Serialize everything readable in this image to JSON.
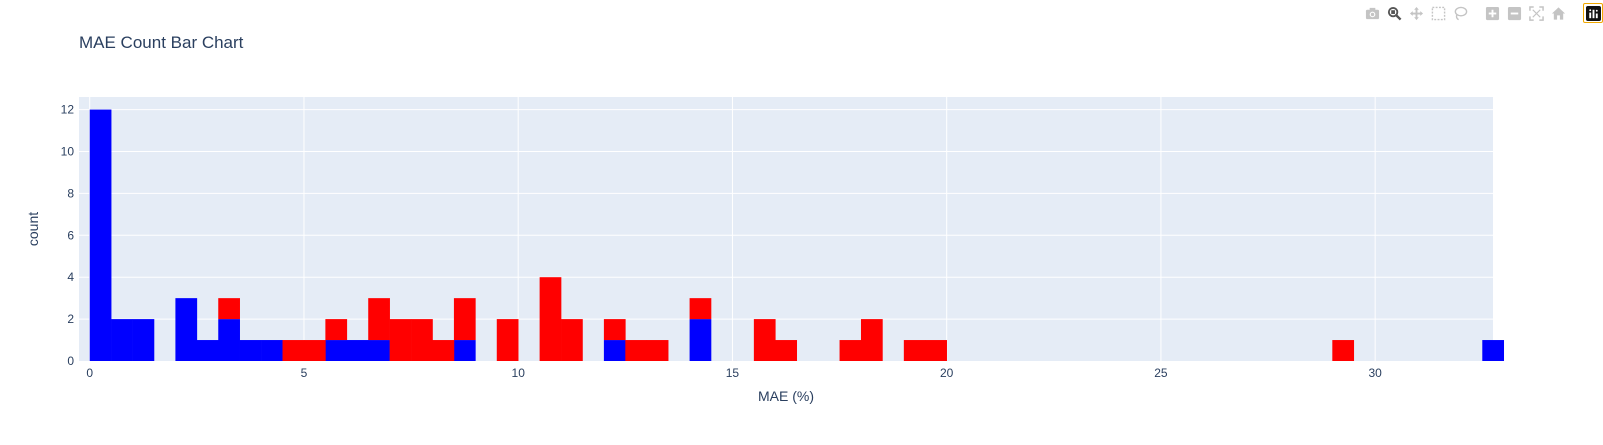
{
  "modebar": {
    "buttons": [
      {
        "icon": "camera-icon"
      },
      {
        "icon": "zoom-icon"
      },
      {
        "icon": "pan-icon"
      },
      {
        "icon": "box-select-icon"
      },
      {
        "icon": "lasso-select-icon"
      },
      {
        "icon": "zoom-in-icon"
      },
      {
        "icon": "zoom-out-icon"
      },
      {
        "icon": "autoscale-icon"
      },
      {
        "icon": "reset-axes-icon"
      },
      {
        "icon": "plotly-logo-icon"
      }
    ]
  },
  "colors": {
    "plot_bg": "#e5ecf6",
    "grid": "#ffffff",
    "series_a": "#0000ff",
    "series_b": "#ff0000"
  },
  "chart_data": {
    "type": "bar",
    "barmode": "stack",
    "title": "MAE Count Bar Chart",
    "xlabel": "MAE (%)",
    "ylabel": "count",
    "xlim": [
      -0.25,
      32.75
    ],
    "ylim": [
      0,
      12.6
    ],
    "bin_width": 0.5,
    "xticks": [
      0,
      5,
      10,
      15,
      20,
      25,
      30
    ],
    "yticks": [
      0,
      2,
      4,
      6,
      8,
      10,
      12
    ],
    "grid": true,
    "series": [
      {
        "color": "#0000ff",
        "bins": [
          {
            "x": 0,
            "count": 12
          },
          {
            "x": 0.5,
            "count": 2
          },
          {
            "x": 1,
            "count": 2
          },
          {
            "x": 2,
            "count": 3
          },
          {
            "x": 2.5,
            "count": 1
          },
          {
            "x": 3,
            "count": 2
          },
          {
            "x": 3.5,
            "count": 1
          },
          {
            "x": 4,
            "count": 1
          },
          {
            "x": 5.5,
            "count": 1
          },
          {
            "x": 6,
            "count": 1
          },
          {
            "x": 6.5,
            "count": 1
          },
          {
            "x": 8.5,
            "count": 1
          },
          {
            "x": 12,
            "count": 1
          },
          {
            "x": 14,
            "count": 2
          },
          {
            "x": 32.5,
            "count": 1
          }
        ]
      },
      {
        "color": "#ff0000",
        "bins": [
          {
            "x": 3,
            "count": 1
          },
          {
            "x": 4.5,
            "count": 1
          },
          {
            "x": 5,
            "count": 1
          },
          {
            "x": 5.5,
            "count": 1
          },
          {
            "x": 6.5,
            "count": 2
          },
          {
            "x": 7,
            "count": 2
          },
          {
            "x": 7.5,
            "count": 2
          },
          {
            "x": 8,
            "count": 1
          },
          {
            "x": 8.5,
            "count": 2
          },
          {
            "x": 9.5,
            "count": 2
          },
          {
            "x": 10.5,
            "count": 4
          },
          {
            "x": 11,
            "count": 2
          },
          {
            "x": 12,
            "count": 1
          },
          {
            "x": 12.5,
            "count": 1
          },
          {
            "x": 13,
            "count": 1
          },
          {
            "x": 14,
            "count": 1
          },
          {
            "x": 15.5,
            "count": 2
          },
          {
            "x": 16,
            "count": 1
          },
          {
            "x": 17.5,
            "count": 1
          },
          {
            "x": 18,
            "count": 2
          },
          {
            "x": 19,
            "count": 1
          },
          {
            "x": 19.5,
            "count": 1
          },
          {
            "x": 29,
            "count": 1
          }
        ]
      }
    ]
  }
}
